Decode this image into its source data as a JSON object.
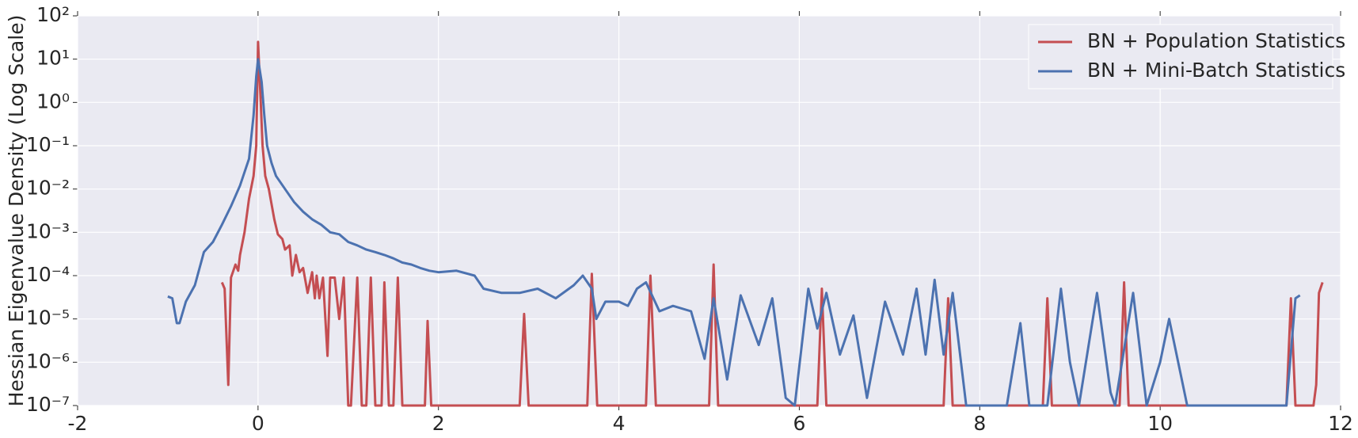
{
  "chart_data": {
    "type": "line",
    "ylabel": "Hessian Eigenvalue Density (Log Scale)",
    "yscale": "log",
    "grid": true,
    "legend": "upper right",
    "xlim": [
      -2,
      12
    ],
    "xticks": [
      -2,
      0,
      2,
      4,
      6,
      8,
      10,
      12
    ],
    "ylim": [
      1e-07,
      100
    ],
    "yticks": [
      {
        "value": 1e-07,
        "label": "10⁻⁷"
      },
      {
        "value": 1e-06,
        "label": "10⁻⁶"
      },
      {
        "value": 1e-05,
        "label": "10⁻⁵"
      },
      {
        "value": 0.0001,
        "label": "10⁻⁴"
      },
      {
        "value": 0.001,
        "label": "10⁻³"
      },
      {
        "value": 0.01,
        "label": "10⁻²"
      },
      {
        "value": 0.1,
        "label": "10⁻¹"
      },
      {
        "value": 1,
        "label": "10⁰"
      },
      {
        "value": 10,
        "label": "10¹"
      },
      {
        "value": 100,
        "label": "10²"
      }
    ],
    "series": [
      {
        "name": "BN + Population Statistics",
        "color": "#c44e52",
        "x": [
          -0.4,
          -0.37,
          -0.33,
          -0.3,
          -0.25,
          -0.22,
          -0.2,
          -0.15,
          -0.1,
          -0.05,
          -0.02,
          0,
          0.03,
          0.05,
          0.08,
          0.12,
          0.18,
          0.22,
          0.27,
          0.3,
          0.35,
          0.38,
          0.42,
          0.46,
          0.5,
          0.55,
          0.6,
          0.63,
          0.65,
          0.68,
          0.72,
          0.77,
          0.8,
          0.85,
          0.9,
          0.95,
          1.0,
          1.03,
          1.1,
          1.15,
          1.2,
          1.25,
          1.3,
          1.37,
          1.4,
          1.45,
          1.5,
          1.55,
          1.6,
          1.85,
          1.88,
          1.92,
          2.9,
          2.95,
          3.0,
          3.65,
          3.7,
          3.76,
          4.3,
          4.35,
          4.41,
          5.0,
          5.05,
          5.1,
          6.2,
          6.25,
          6.3,
          7.6,
          7.65,
          7.7,
          8.7,
          8.75,
          8.8,
          9.55,
          9.6,
          9.65,
          11.4,
          11.45,
          11.5,
          11.7,
          11.73,
          11.76,
          11.8
        ],
        "values": [
          7e-05,
          5e-05,
          3e-07,
          9e-05,
          0.00018,
          0.00013,
          0.0003,
          0.001,
          0.006,
          0.02,
          0.1,
          25,
          1,
          0.1,
          0.02,
          0.01,
          0.002,
          0.0009,
          0.0007,
          0.0004,
          0.0005,
          0.0001,
          0.0003,
          0.00012,
          0.00015,
          4e-05,
          0.00012,
          3e-05,
          0.0001,
          3e-05,
          9e-05,
          1.4e-06,
          9e-05,
          9e-05,
          1e-05,
          9e-05,
          1e-07,
          1e-07,
          9e-05,
          1e-07,
          1e-07,
          9e-05,
          1e-07,
          1e-07,
          7e-05,
          1e-07,
          1e-07,
          9e-05,
          1e-07,
          1e-07,
          9e-06,
          1e-07,
          1e-07,
          1.3e-05,
          1e-07,
          1e-07,
          0.00011,
          1e-07,
          1e-07,
          0.0001,
          1e-07,
          1e-07,
          0.00018,
          1e-07,
          1e-07,
          5e-05,
          1e-07,
          1e-07,
          3e-05,
          1e-07,
          1e-07,
          3e-05,
          1e-07,
          1e-07,
          7e-05,
          1e-07,
          1e-07,
          3e-05,
          1e-07,
          1e-07,
          3e-07,
          4e-05,
          7e-05
        ]
      },
      {
        "name": "BN + Mini-Batch Statistics",
        "color": "#4c72b0",
        "x": [
          -1.0,
          -0.95,
          -0.9,
          -0.87,
          -0.8,
          -0.7,
          -0.6,
          -0.5,
          -0.4,
          -0.3,
          -0.2,
          -0.1,
          -0.05,
          -0.02,
          0,
          0.04,
          0.07,
          0.1,
          0.15,
          0.2,
          0.3,
          0.4,
          0.5,
          0.6,
          0.7,
          0.8,
          0.9,
          1.0,
          1.1,
          1.2,
          1.3,
          1.4,
          1.5,
          1.6,
          1.7,
          1.8,
          1.9,
          2.0,
          2.2,
          2.4,
          2.5,
          2.7,
          2.9,
          3.1,
          3.3,
          3.5,
          3.6,
          3.7,
          3.75,
          3.85,
          4.0,
          4.1,
          4.2,
          4.3,
          4.45,
          4.6,
          4.8,
          4.95,
          5.05,
          5.2,
          5.35,
          5.55,
          5.7,
          5.85,
          5.95,
          6.1,
          6.2,
          6.3,
          6.45,
          6.6,
          6.75,
          6.95,
          7.15,
          7.3,
          7.4,
          7.5,
          7.6,
          7.7,
          7.85,
          8.3,
          8.45,
          8.55,
          8.75,
          8.9,
          9.0,
          9.1,
          9.3,
          9.45,
          9.5,
          9.7,
          9.85,
          10.0,
          10.1,
          10.2,
          10.3,
          11.4,
          11.5,
          11.55
        ],
        "values": [
          3.3e-05,
          3e-05,
          8e-06,
          8e-06,
          2.5e-05,
          6e-05,
          0.00035,
          0.0006,
          0.0015,
          0.004,
          0.012,
          0.05,
          0.5,
          4,
          10,
          3,
          0.5,
          0.1,
          0.04,
          0.02,
          0.01,
          0.005,
          0.003,
          0.002,
          0.0015,
          0.001,
          0.0009,
          0.0006,
          0.0005,
          0.0004,
          0.00035,
          0.0003,
          0.00025,
          0.0002,
          0.00018,
          0.00015,
          0.00013,
          0.00012,
          0.00013,
          0.0001,
          5e-05,
          4e-05,
          4e-05,
          5e-05,
          3e-05,
          6e-05,
          0.0001,
          5e-05,
          1e-05,
          2.5e-05,
          2.5e-05,
          2e-05,
          5e-05,
          7e-05,
          1.5e-05,
          2e-05,
          1.5e-05,
          1.2e-06,
          3e-05,
          4e-07,
          3.5e-05,
          2.5e-06,
          3e-05,
          1.5e-07,
          1e-07,
          5e-05,
          6e-06,
          4e-05,
          1.5e-06,
          1.2e-05,
          1.5e-07,
          2.5e-05,
          1.5e-06,
          5e-05,
          1.5e-06,
          8e-05,
          1.5e-06,
          4e-05,
          1e-07,
          1e-07,
          8e-06,
          1e-07,
          1e-07,
          5e-05,
          1e-06,
          1e-07,
          4e-05,
          2e-07,
          1e-07,
          4e-05,
          1e-07,
          1e-06,
          1e-05,
          1e-06,
          1e-07,
          1e-07,
          3e-05,
          3.5e-05
        ]
      }
    ]
  }
}
